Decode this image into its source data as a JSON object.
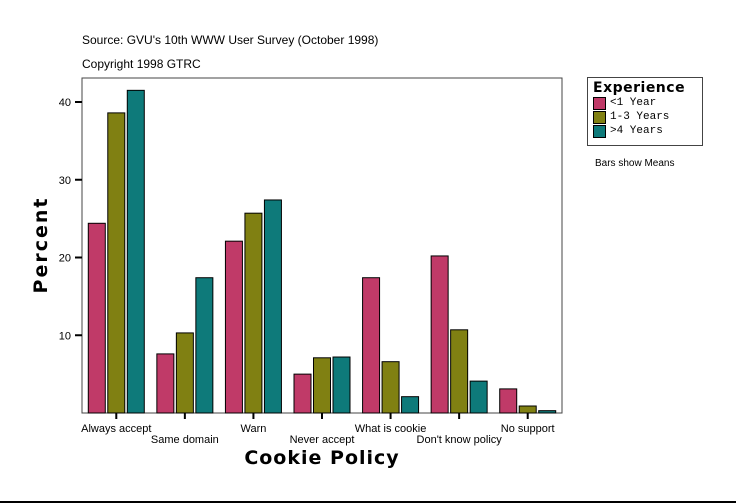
{
  "chart_data": {
    "type": "bar",
    "source_lines": [
      "Source: GVU's 10th WWW User Survey (October 1998)",
      "Copyright 1998 GTRC"
    ],
    "xlabel": "Cookie Policy",
    "ylabel": "Percent",
    "ylim": [
      0,
      43
    ],
    "yticks": [
      10,
      20,
      30,
      40
    ],
    "categories": [
      "Always accept",
      "Same domain",
      "Warn",
      "Never accept",
      "What is cookie",
      "Don't know policy",
      "No support"
    ],
    "legend_title": "Experience",
    "legend_position": "right",
    "note": "Bars show Means",
    "grid": false,
    "series": [
      {
        "name": "<1 Year",
        "color": "#C03A68",
        "values": [
          24.4,
          7.6,
          22.1,
          5.0,
          17.4,
          20.2,
          3.1
        ]
      },
      {
        "name": "1-3 Years",
        "color": "#808012",
        "values": [
          38.6,
          10.3,
          25.7,
          7.1,
          6.6,
          10.7,
          0.9
        ]
      },
      {
        "name": ">4 Years",
        "color": "#0E7A7A",
        "values": [
          41.5,
          17.4,
          27.4,
          7.2,
          2.1,
          4.1,
          0.3
        ]
      }
    ]
  }
}
